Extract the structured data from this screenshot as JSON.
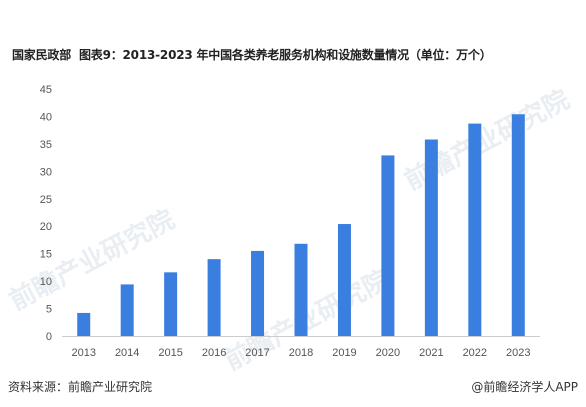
{
  "source_prefix": "国家民政部",
  "title": "图表9：2013-2023 年中国各类养老服务机构和设施数量情况（单位：万个）",
  "watermark": "前瞻产业研究院",
  "footer": {
    "source": "资料来源：前瞻产业研究院",
    "brand": "@前瞻经济学人APP"
  },
  "colors": {
    "bar": "#3a7fe0",
    "axis": "#cccccc",
    "text": "#555555"
  },
  "chart_data": {
    "type": "bar",
    "title": "图表9：2013-2023 年中国各类养老服务机构和设施数量情况（单位：万个）",
    "xlabel": "",
    "ylabel": "",
    "categories": [
      "2013",
      "2014",
      "2015",
      "2016",
      "2017",
      "2018",
      "2019",
      "2020",
      "2021",
      "2022",
      "2023"
    ],
    "values": [
      4.2,
      9.4,
      11.6,
      14.0,
      15.5,
      16.8,
      20.4,
      32.9,
      35.8,
      38.7,
      40.4
    ],
    "ylim": [
      0,
      45
    ],
    "yticks": [
      "0",
      "5",
      "10",
      "15",
      "20",
      "25",
      "30",
      "35",
      "40",
      "45"
    ],
    "grid": false,
    "legend": "none"
  }
}
